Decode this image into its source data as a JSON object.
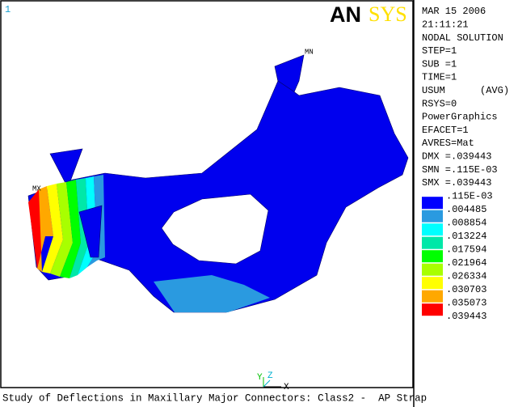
{
  "viewport": {
    "window_number": "1",
    "logo": {
      "an": "AN",
      "sys": "SYS"
    },
    "labels": {
      "max": "MX",
      "min": "MN"
    },
    "triad": {
      "y": "Y",
      "z": "Z",
      "x": "X"
    },
    "caption": "Study of Deflections in Maxillary Major Connectors: Class2 -  AP Strap"
  },
  "panel": {
    "lines": [
      "MAR 15 2006",
      "21:11:21",
      "NODAL SOLUTION",
      "STEP=1",
      "SUB =1",
      "TIME=1",
      "USUM      (AVG)",
      "RSYS=0",
      "PowerGraphics",
      "EFACET=1",
      "AVRES=Mat",
      "DMX =.039443",
      "SMN =.115E-03",
      "SMX =.039443"
    ]
  },
  "legend": {
    "labels": [
      ".115E-03",
      ".004485",
      ".008854",
      ".013224",
      ".017594",
      ".021964",
      ".026334",
      ".030703",
      ".035073",
      ".039443"
    ],
    "colors": [
      "#0000ff",
      "#2a9ae0",
      "#00ffff",
      "#00e8a8",
      "#00ff00",
      "#a8ff00",
      "#ffff00",
      "#ffa800",
      "#ff0000"
    ]
  }
}
